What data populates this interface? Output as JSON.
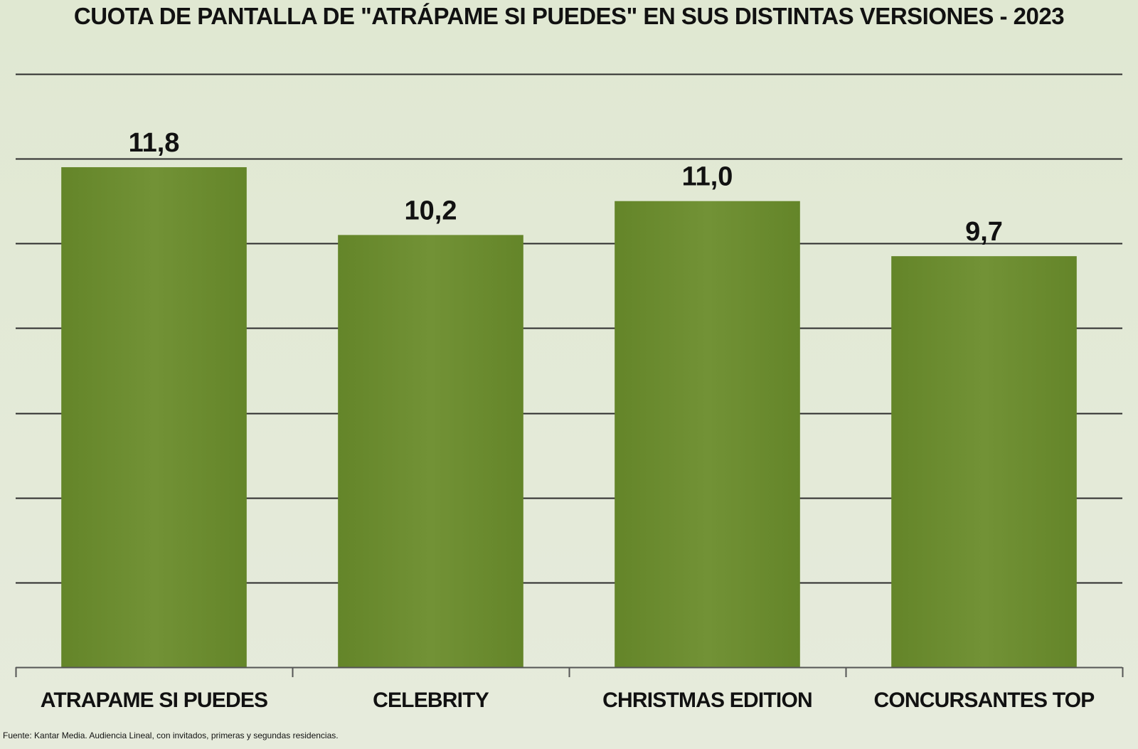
{
  "chart_data": {
    "type": "bar",
    "title": "CUOTA DE PANTALLA DE \"ATRÁPAME SI PUEDES\" EN SUS DISTINTAS VERSIONES - 2023",
    "categories": [
      "ATRAPAME SI PUEDES",
      "CELEBRITY",
      "CHRISTMAS EDITION",
      "CONCURSANTES TOP"
    ],
    "values": [
      11.8,
      10.2,
      11.0,
      9.7
    ],
    "value_labels": [
      "11,8",
      "10,2",
      "11,0",
      "9,7"
    ],
    "xlabel": "",
    "ylabel": "",
    "ylim": [
      0,
      14
    ],
    "y_gridline_step": 2,
    "grid": true,
    "show_y_tick_labels": false,
    "legend": "none",
    "bar_color": "#6b8c2f",
    "source": "Fuente: Kantar Media. Audiencia Lineal, con invitados, primeras y segundas residencias."
  }
}
